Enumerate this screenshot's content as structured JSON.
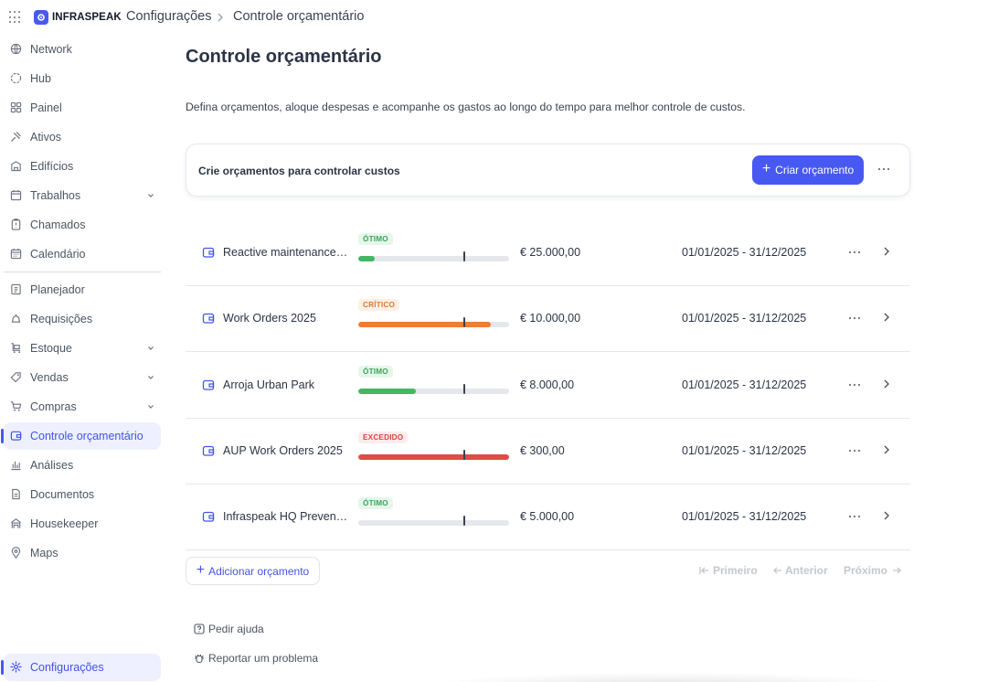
{
  "header": {
    "brand": "INFRASPEAK",
    "breadcrumb": [
      "Configurações",
      "Controle orçamentário"
    ]
  },
  "sidebar": {
    "items": [
      {
        "label": "Network",
        "icon": "globe-icon"
      },
      {
        "label": "Hub",
        "icon": "hub-icon"
      },
      {
        "label": "Painel",
        "icon": "dashboard-icon"
      },
      {
        "label": "Ativos",
        "icon": "assets-icon"
      },
      {
        "label": "Edifícios",
        "icon": "building-icon"
      },
      {
        "label": "Trabalhos",
        "icon": "calendar-icon",
        "expandable": true
      },
      {
        "label": "Chamados",
        "icon": "clipboard-icon"
      },
      {
        "label": "Calendário",
        "icon": "calendar-icon"
      },
      {
        "label": "Planejador",
        "icon": "planner-icon"
      },
      {
        "label": "Requisições",
        "icon": "bell-icon"
      },
      {
        "label": "Estoque",
        "icon": "stock-icon",
        "expandable": true
      },
      {
        "label": "Vendas",
        "icon": "tag-icon",
        "expandable": true
      },
      {
        "label": "Compras",
        "icon": "cart-icon",
        "expandable": true
      },
      {
        "label": "Controle orçamentário",
        "icon": "wallet-icon",
        "active": true
      },
      {
        "label": "Análises",
        "icon": "chart-icon"
      },
      {
        "label": "Documentos",
        "icon": "document-icon"
      },
      {
        "label": "Housekeeper",
        "icon": "housekeeper-icon"
      },
      {
        "label": "Maps",
        "icon": "map-pin-icon"
      }
    ],
    "settings": {
      "label": "Configurações",
      "icon": "gear-icon",
      "active": true
    }
  },
  "main": {
    "title": "Controle orçamentário",
    "description": "Defina orçamentos, aloque despesas e acompanhe os gastos ao longo do tempo para melhor controle de custos.",
    "card": {
      "title": "Crie orçamentos para controlar custos",
      "create_button": "Criar orçamento"
    },
    "budgets": [
      {
        "name": "Reactive maintenance S...",
        "status": "ÓTIMO",
        "status_kind": "ok",
        "progress": 0.11,
        "marker": 0.7,
        "amount": "€ 25.000,00",
        "period": "01/01/2025 - 31/12/2025"
      },
      {
        "name": "Work Orders 2025",
        "status": "CRÍTICO",
        "status_kind": "crit",
        "progress": 0.88,
        "marker": 0.7,
        "amount": "€ 10.000,00",
        "period": "01/01/2025 - 31/12/2025"
      },
      {
        "name": "Arroja Urban Park",
        "status": "ÓTIMO",
        "status_kind": "ok",
        "progress": 0.38,
        "marker": 0.7,
        "amount": "€ 8.000,00",
        "period": "01/01/2025 - 31/12/2025"
      },
      {
        "name": "AUP Work Orders 2025",
        "status": "EXCEDIDO",
        "status_kind": "exc",
        "progress": 1.0,
        "marker": 0.7,
        "amount": "€ 300,00",
        "period": "01/01/2025 - 31/12/2025"
      },
      {
        "name": "Infraspeak HQ Preventive",
        "status": "ÓTIMO",
        "status_kind": "ok",
        "progress": 0.0,
        "marker": 0.7,
        "amount": "€ 5.000,00",
        "period": "01/01/2025 - 31/12/2025"
      }
    ],
    "add_button": "Adicionar orçamento",
    "pagination": {
      "first": "Primeiro",
      "previous": "Anterior",
      "next": "Próximo"
    },
    "footer_links": {
      "help": "Pedir ajuda",
      "report": "Reportar um problema"
    }
  },
  "colors": {
    "accent": "#4859f2",
    "ok": "#43b764",
    "critical": "#ee7d35",
    "exceeded": "#e24a45",
    "track": "#e5e7eb"
  }
}
